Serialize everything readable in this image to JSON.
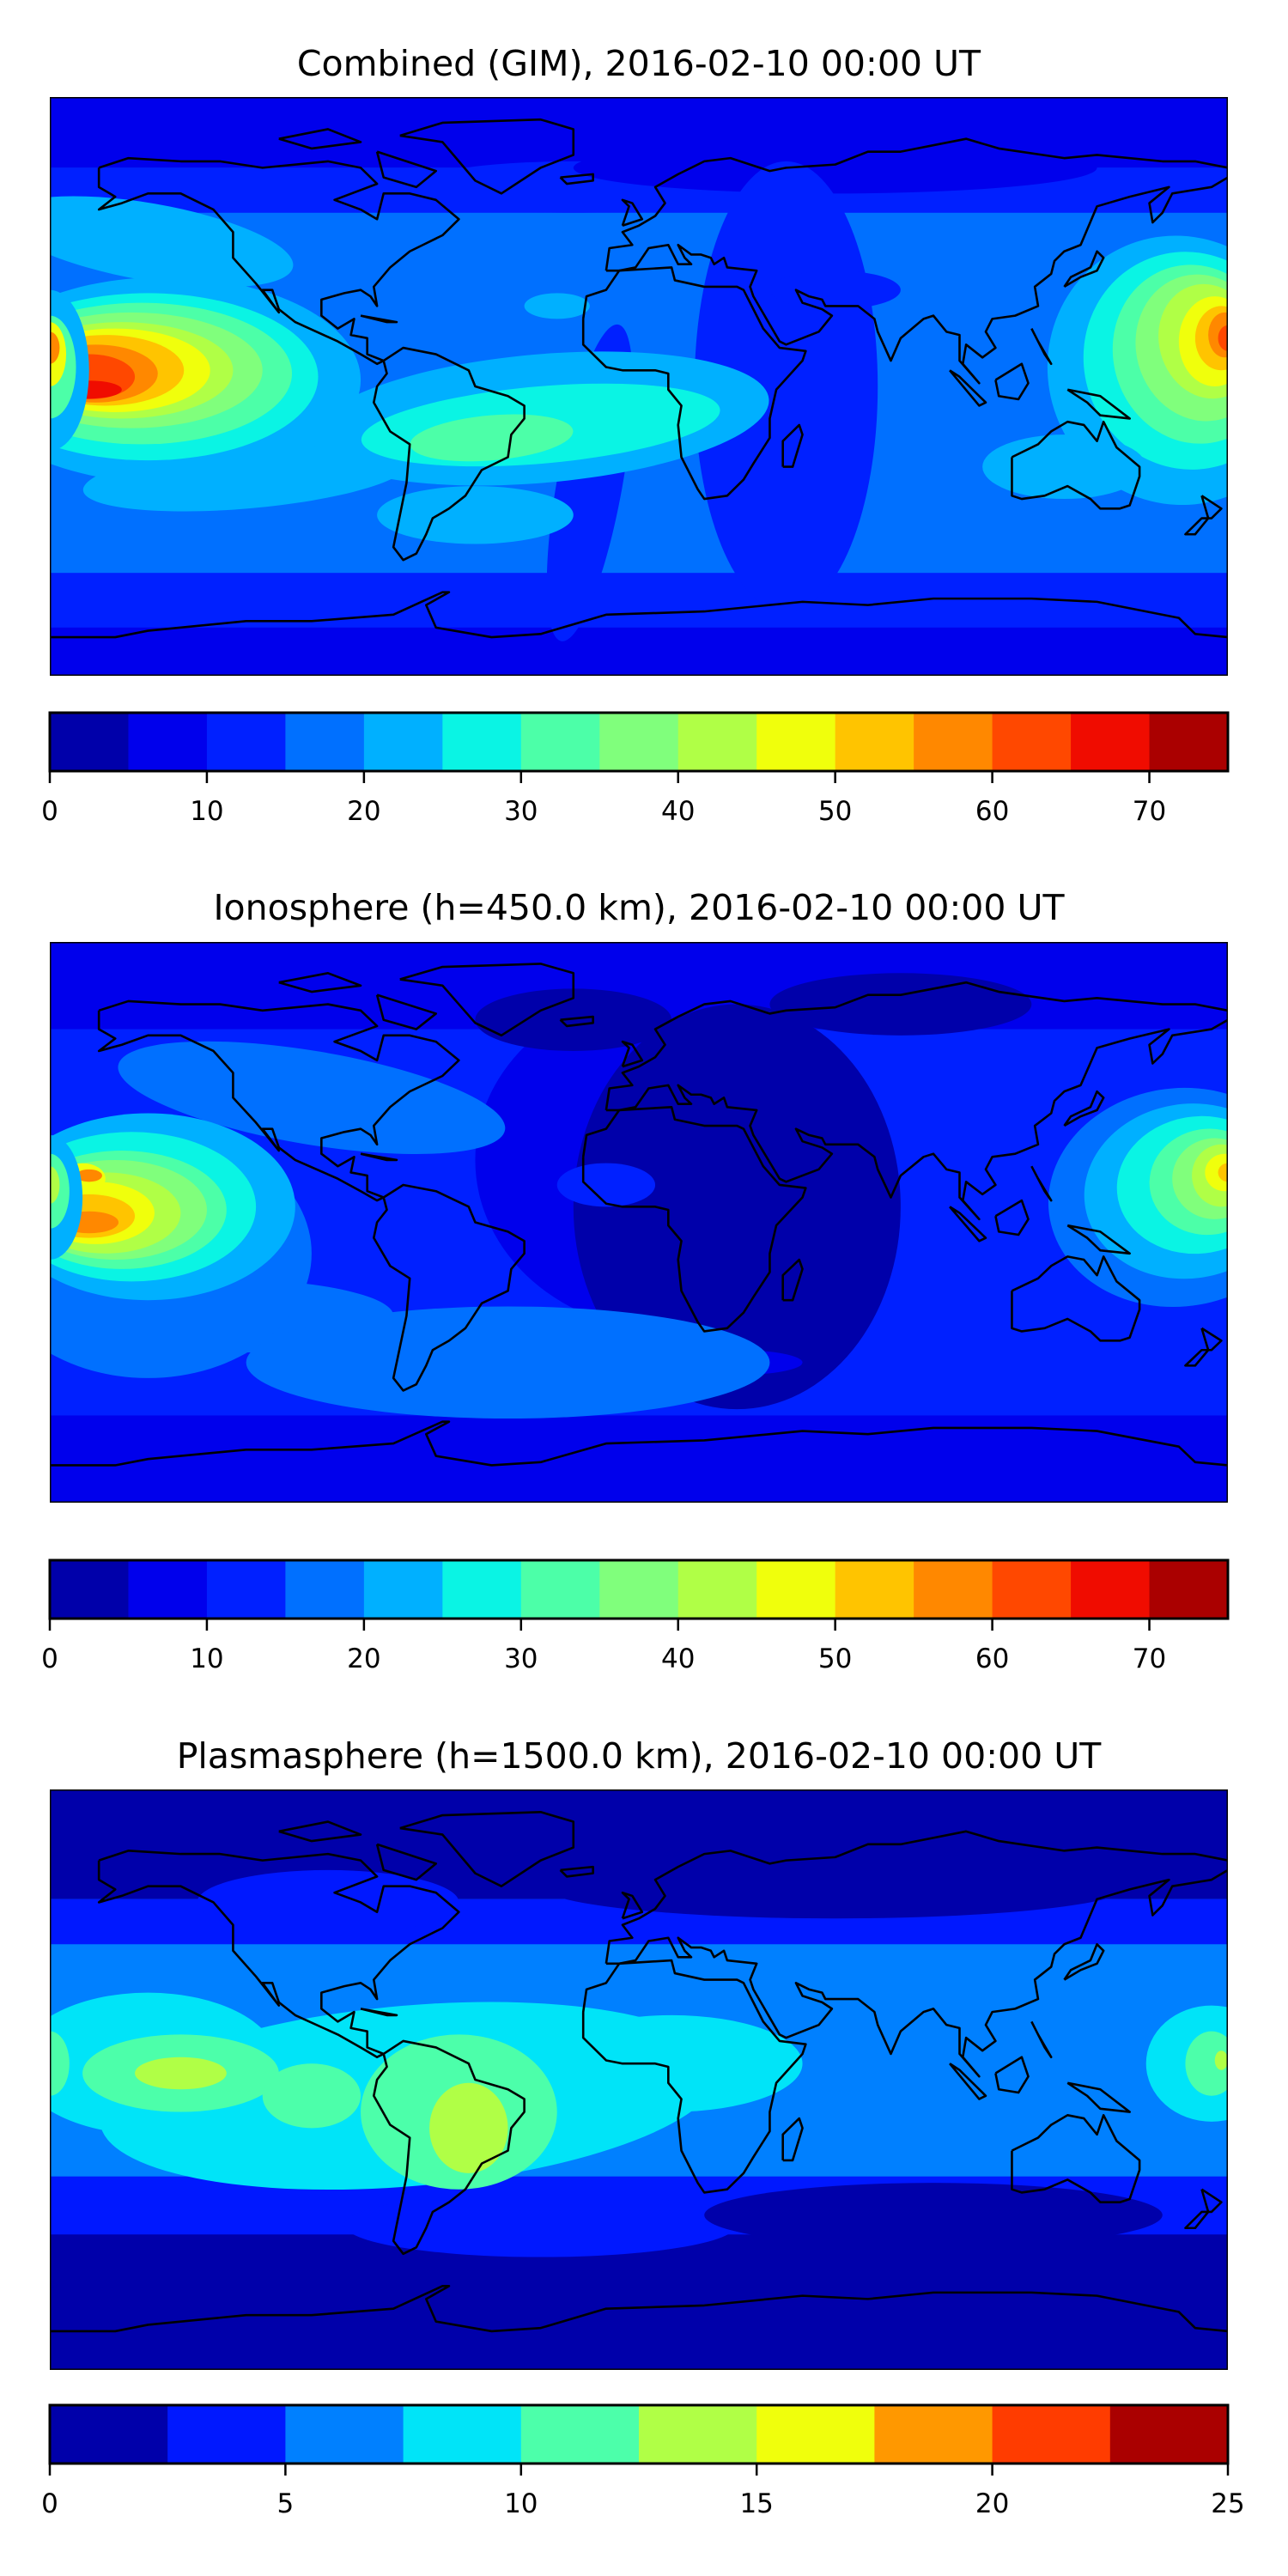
{
  "chart_data": [
    {
      "type": "heatmap",
      "subtype": "filled-contour world map",
      "title": "Combined (GIM), 2016-02-10 00:00 UT",
      "levels": [
        0,
        5,
        10,
        15,
        20,
        25,
        30,
        35,
        40,
        45,
        50,
        55,
        60,
        65,
        70,
        75
      ],
      "colors": [
        "#0000aa",
        "#0000ec",
        "#0020ff",
        "#0070ff",
        "#00b0ff",
        "#0af4e4",
        "#4cffa8",
        "#80ff7c",
        "#b0ff46",
        "#f0ff0c",
        "#ffc400",
        "#ff8800",
        "#ff4800",
        "#f00c00",
        "#aa0000"
      ],
      "colorbar_ticks": [
        "0",
        "10",
        "20",
        "30",
        "40",
        "50",
        "60",
        "70"
      ],
      "colorbar_tick_values": [
        0,
        10,
        20,
        30,
        40,
        50,
        60,
        70
      ],
      "colorbar_range": [
        0,
        75
      ],
      "colorbar_placement": "bottom",
      "features": [
        {
          "region": "Eastern Pacific",
          "lon": -160,
          "lat": 0,
          "max_level": 65
        },
        {
          "region": "Western Pacific",
          "lon": 178,
          "lat": 10,
          "max_level": 60
        },
        {
          "region": "South Atlantic",
          "lon": -40,
          "lat": -15,
          "max_level": 35
        }
      ]
    },
    {
      "type": "heatmap",
      "subtype": "filled-contour world map",
      "title": "Ionosphere  (h=450.0 km), 2016-02-10 00:00 UT",
      "levels": [
        0,
        5,
        10,
        15,
        20,
        25,
        30,
        35,
        40,
        45,
        50,
        55,
        60,
        65,
        70,
        75
      ],
      "colors": [
        "#0000aa",
        "#0000ec",
        "#0020ff",
        "#0070ff",
        "#00b0ff",
        "#0af4e4",
        "#4cffa8",
        "#80ff7c",
        "#b0ff46",
        "#f0ff0c",
        "#ffc400",
        "#ff8800",
        "#ff4800",
        "#f00c00",
        "#aa0000"
      ],
      "colorbar_ticks": [
        "0",
        "10",
        "20",
        "30",
        "40",
        "50",
        "60",
        "70"
      ],
      "colorbar_tick_values": [
        0,
        10,
        20,
        30,
        40,
        50,
        60,
        70
      ],
      "colorbar_range": [
        0,
        75
      ],
      "colorbar_placement": "bottom",
      "features": [
        {
          "region": "Eastern Pacific",
          "lon": -165,
          "lat": 0,
          "max_level": 55
        },
        {
          "region": "Western Pacific",
          "lon": 178,
          "lat": 10,
          "max_level": 50
        }
      ]
    },
    {
      "type": "heatmap",
      "subtype": "filled-contour world map",
      "title": "Plasmasphere (h=1500.0 km), 2016-02-10 00:00 UT",
      "levels": [
        0,
        2.5,
        5,
        7.5,
        10,
        12.5,
        15,
        17.5,
        20,
        22.5,
        25
      ],
      "colors": [
        "#0000aa",
        "#0018ff",
        "#0080ff",
        "#00e4f8",
        "#4cffaa",
        "#b0ff46",
        "#f0ff0c",
        "#ff9800",
        "#ff3c00",
        "#aa0000"
      ],
      "colorbar_ticks": [
        "0",
        "5",
        "10",
        "15",
        "20",
        "25"
      ],
      "colorbar_tick_values": [
        0,
        5,
        10,
        15,
        20,
        25
      ],
      "colorbar_range": [
        0,
        25
      ],
      "colorbar_placement": "bottom",
      "features": [
        {
          "region": "South America",
          "lon": -52,
          "lat": -15,
          "max_level": 12.5
        },
        {
          "region": "Eastern Pacific",
          "lon": -140,
          "lat": 0,
          "max_level": 12.5
        },
        {
          "region": "Western Pacific",
          "lon": 178,
          "lat": 5,
          "max_level": 10
        }
      ]
    }
  ]
}
